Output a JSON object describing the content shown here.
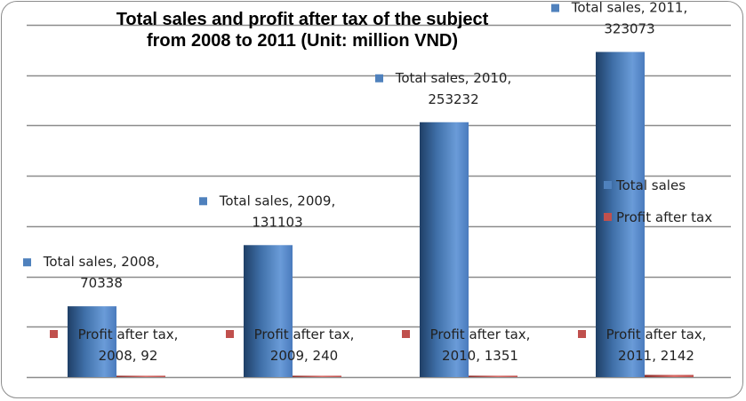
{
  "chart_data": {
    "type": "bar",
    "title_lines": [
      "Total sales and profit after tax of the subject",
      "from 2008 to 2011 (Unit: million VND)"
    ],
    "title": "Total sales and profit after tax of the subject from 2008 to 2011 (Unit: million VND)",
    "categories": [
      "2008",
      "2009",
      "2010",
      "2011"
    ],
    "series": [
      {
        "name": "Total sales",
        "color": "#4f81bd",
        "values": [
          70338,
          131103,
          253232,
          323073
        ]
      },
      {
        "name": "Profit after tax",
        "color": "#c0504d",
        "values": [
          92,
          240,
          1351,
          2142
        ]
      }
    ],
    "data_labels": {
      "Total sales": [
        [
          "Total sales, 2008,",
          "70338"
        ],
        [
          "Total sales, 2009,",
          "131103"
        ],
        [
          "Total sales, 2010,",
          "253232"
        ],
        [
          "Total sales, 2011,",
          "323073"
        ]
      ],
      "Profit after tax": [
        [
          "Profit after tax,",
          "2008, 92"
        ],
        [
          "Profit after tax,",
          "2009, 240"
        ],
        [
          "Profit after tax,",
          "2010, 1351"
        ],
        [
          "Profit after tax,",
          "2011, 2142"
        ]
      ]
    },
    "ylim": [
      0,
      350000
    ],
    "gridline_step": 50000,
    "grid": true,
    "xlabel": "",
    "ylabel": "",
    "legend": [
      "Total sales",
      "Profit after tax"
    ],
    "legend_position": "right"
  }
}
